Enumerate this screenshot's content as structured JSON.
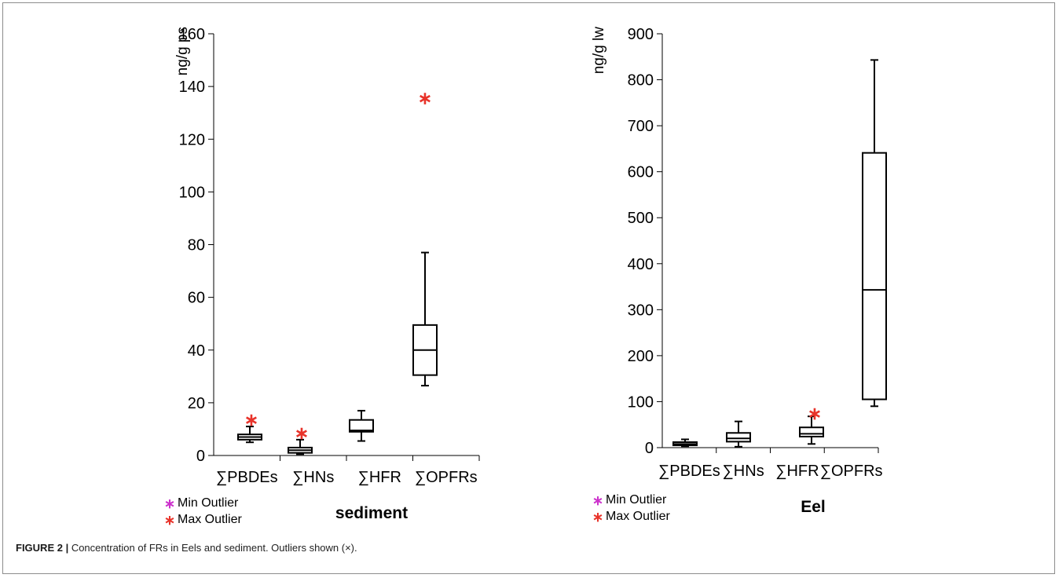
{
  "figure": {
    "caption_label": "FIGURE 2 |",
    "caption_text": " Concentration of FRs in Eels and sediment. Outliers shown (×)."
  },
  "legend": {
    "min_label": "Min Outlier",
    "max_label": "Max Outlier",
    "min_color": "#cc33cc",
    "max_color": "#e8332a",
    "outlier_marker": "∗"
  },
  "chart_data": [
    {
      "type": "box",
      "title": "sediment",
      "ylabel": "ng/g ps",
      "ylim": [
        0,
        160
      ],
      "yticks": [
        0,
        20,
        40,
        60,
        80,
        100,
        120,
        140,
        160
      ],
      "categories": [
        "∑PBDEs",
        "∑HNs",
        "∑HFR",
        "∑OPFRs"
      ],
      "boxes": [
        {
          "category": "∑PBDEs",
          "whisker_low": 5,
          "q1": 6,
          "median": 7,
          "q3": 8,
          "whisker_high": 11,
          "max_outliers": [
            14
          ],
          "min_outliers": []
        },
        {
          "category": "∑HNs",
          "whisker_low": 0.5,
          "q1": 1,
          "median": 2,
          "q3": 3,
          "whisker_high": 6,
          "max_outliers": [
            9
          ],
          "min_outliers": []
        },
        {
          "category": "∑HFR",
          "whisker_low": 5.5,
          "q1": 9,
          "median": 9.5,
          "q3": 13.5,
          "whisker_high": 17,
          "max_outliers": [],
          "min_outliers": []
        },
        {
          "category": "∑OPFRs",
          "whisker_low": 26.5,
          "q1": 30.5,
          "median": 40,
          "q3": 49.5,
          "whisker_high": 77,
          "max_outliers": [
            136
          ],
          "min_outliers": []
        }
      ],
      "grid": false,
      "legend_position": "bottom-left"
    },
    {
      "type": "box",
      "title": "Eel",
      "ylabel": "ng/g lw",
      "ylim": [
        0,
        900
      ],
      "yticks": [
        0,
        100,
        200,
        300,
        400,
        500,
        600,
        700,
        800,
        900
      ],
      "categories": [
        "∑PBDEs",
        "∑HNs",
        "∑HFR",
        "∑OPFRs"
      ],
      "boxes": [
        {
          "category": "∑PBDEs",
          "whisker_low": 3,
          "q1": 5,
          "median": 8,
          "q3": 12,
          "whisker_high": 18,
          "max_outliers": [],
          "min_outliers": []
        },
        {
          "category": "∑HNs",
          "whisker_low": 2,
          "q1": 13,
          "median": 20,
          "q3": 32,
          "whisker_high": 57,
          "max_outliers": [],
          "min_outliers": []
        },
        {
          "category": "∑HFR",
          "whisker_low": 8,
          "q1": 24,
          "median": 30,
          "q3": 44,
          "whisker_high": 68,
          "max_outliers": [
            77
          ],
          "min_outliers": []
        },
        {
          "category": "∑OPFRs",
          "whisker_low": 90,
          "q1": 105,
          "median": 343,
          "q3": 641,
          "whisker_high": 843,
          "max_outliers": [],
          "min_outliers": []
        }
      ],
      "grid": false,
      "legend_position": "bottom-left"
    }
  ]
}
